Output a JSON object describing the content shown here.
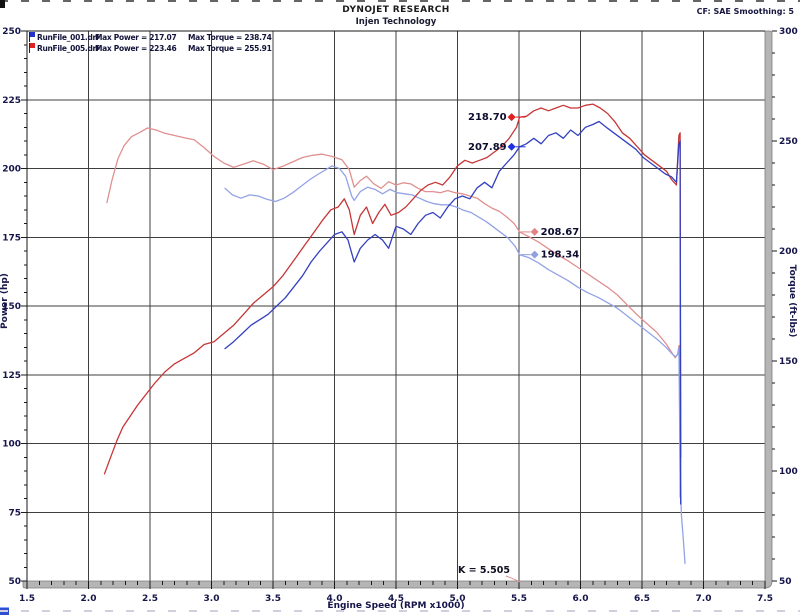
{
  "header": {
    "title": "DYNOJET RESEARCH",
    "subtitle": "Injen Technology",
    "correction": "CF: SAE  Smoothing: 5"
  },
  "legend": {
    "rows": [
      {
        "file": "RunFile_001.drf",
        "max_power": "Max Power = 217.07",
        "max_torque": "Max Torque = 238.74",
        "color": "#2233cc"
      },
      {
        "file": "RunFile_005.drf",
        "max_power": "Max Power = 223.46",
        "max_torque": "Max Torque = 255.91",
        "color": "#dd2222"
      }
    ]
  },
  "chart_data": {
    "type": "line",
    "title": "DYNOJET RESEARCH",
    "subtitle": "Injen Technology",
    "x_axis": {
      "label": "Engine Speed (RPM x1000)",
      "min": 1.5,
      "max": 7.5,
      "major_ticks": [
        1.5,
        2.0,
        2.5,
        3.0,
        3.5,
        4.0,
        4.5,
        5.0,
        5.5,
        6.0,
        6.5,
        7.0,
        7.5
      ],
      "minor_step": 0.1
    },
    "y_left": {
      "label": "Power (hp)",
      "min": 50,
      "max": 250,
      "major_ticks": [
        250,
        225,
        200,
        175,
        150,
        125,
        100,
        75,
        50
      ],
      "minor_step": 5
    },
    "y_right": {
      "label": "Torque (ft-lbs)",
      "min": 50,
      "max": 300,
      "major_ticks": [
        300,
        250,
        200,
        150,
        100,
        50
      ],
      "minor_step": 10
    },
    "grid": true,
    "legend_position": "top-left",
    "style": {
      "grid_color": "#3f3f3f",
      "frame_fill": "#b5b5b5",
      "frame_edge": "#7d7d7d",
      "tick_color": "#1a1a1a",
      "label_color": "#15154a"
    },
    "series": [
      {
        "id": "torque-run005",
        "name": "RunFile_005 Torque",
        "axis": "right",
        "color": "#e09090",
        "points": [
          [
            2.15,
            222
          ],
          [
            2.19,
            232
          ],
          [
            2.24,
            242
          ],
          [
            2.29,
            248
          ],
          [
            2.35,
            252
          ],
          [
            2.42,
            254
          ],
          [
            2.48,
            255.9
          ],
          [
            2.55,
            255
          ],
          [
            2.62,
            253.5
          ],
          [
            2.7,
            252.5
          ],
          [
            2.78,
            251.5
          ],
          [
            2.86,
            250.5
          ],
          [
            2.94,
            247
          ],
          [
            3.02,
            243
          ],
          [
            3.1,
            240
          ],
          [
            3.18,
            238
          ],
          [
            3.26,
            239.5
          ],
          [
            3.34,
            241
          ],
          [
            3.42,
            239.5
          ],
          [
            3.5,
            237
          ],
          [
            3.58,
            238.5
          ],
          [
            3.66,
            240.5
          ],
          [
            3.74,
            242.5
          ],
          [
            3.82,
            243.5
          ],
          [
            3.9,
            244
          ],
          [
            3.98,
            243
          ],
          [
            4.06,
            241.5
          ],
          [
            4.12,
            237
          ],
          [
            4.16,
            229
          ],
          [
            4.21,
            232
          ],
          [
            4.26,
            234
          ],
          [
            4.32,
            230.5
          ],
          [
            4.38,
            228.5
          ],
          [
            4.44,
            231.5
          ],
          [
            4.5,
            230
          ],
          [
            4.56,
            231
          ],
          [
            4.62,
            230.5
          ],
          [
            4.68,
            228.5
          ],
          [
            4.74,
            227
          ],
          [
            4.8,
            227
          ],
          [
            4.86,
            226.5
          ],
          [
            4.92,
            227.5
          ],
          [
            4.98,
            226.5
          ],
          [
            5.04,
            226
          ],
          [
            5.1,
            225
          ],
          [
            5.16,
            224
          ],
          [
            5.22,
            221.5
          ],
          [
            5.28,
            219.5
          ],
          [
            5.34,
            218
          ],
          [
            5.4,
            215.5
          ],
          [
            5.46,
            212.5
          ],
          [
            5.505,
            208.7
          ],
          [
            5.58,
            206.5
          ],
          [
            5.66,
            204
          ],
          [
            5.74,
            201
          ],
          [
            5.82,
            198
          ],
          [
            5.9,
            195.5
          ],
          [
            5.98,
            192.5
          ],
          [
            6.06,
            189.5
          ],
          [
            6.14,
            186.5
          ],
          [
            6.22,
            183.5
          ],
          [
            6.3,
            180
          ],
          [
            6.38,
            175.5
          ],
          [
            6.46,
            171
          ],
          [
            6.54,
            167
          ],
          [
            6.62,
            163
          ],
          [
            6.7,
            157.5
          ],
          [
            6.74,
            154
          ],
          [
            6.77,
            151.5
          ],
          [
            6.79,
            153
          ],
          [
            6.8,
            157
          ],
          [
            6.805,
            157
          ],
          [
            6.81,
            88
          ]
        ]
      },
      {
        "id": "torque-run001",
        "name": "RunFile_001 Torque",
        "axis": "right",
        "color": "#93a3e6",
        "points": [
          [
            3.11,
            228.5
          ],
          [
            3.17,
            225.5
          ],
          [
            3.24,
            224
          ],
          [
            3.31,
            225.5
          ],
          [
            3.38,
            225
          ],
          [
            3.45,
            223.5
          ],
          [
            3.52,
            222.5
          ],
          [
            3.59,
            224
          ],
          [
            3.66,
            226.5
          ],
          [
            3.73,
            229.5
          ],
          [
            3.8,
            232.5
          ],
          [
            3.87,
            235
          ],
          [
            3.93,
            237
          ],
          [
            3.98,
            238.7
          ],
          [
            4.04,
            237.5
          ],
          [
            4.09,
            234
          ],
          [
            4.14,
            225
          ],
          [
            4.16,
            223
          ],
          [
            4.21,
            227
          ],
          [
            4.27,
            229
          ],
          [
            4.33,
            228
          ],
          [
            4.39,
            226
          ],
          [
            4.45,
            228
          ],
          [
            4.51,
            226.5
          ],
          [
            4.57,
            226
          ],
          [
            4.63,
            225.5
          ],
          [
            4.69,
            224
          ],
          [
            4.75,
            222.5
          ],
          [
            4.81,
            221.5
          ],
          [
            4.87,
            221
          ],
          [
            4.93,
            221
          ],
          [
            4.99,
            220
          ],
          [
            5.05,
            218.5
          ],
          [
            5.11,
            217.5
          ],
          [
            5.17,
            215.5
          ],
          [
            5.23,
            213.5
          ],
          [
            5.29,
            211
          ],
          [
            5.35,
            208.5
          ],
          [
            5.41,
            206
          ],
          [
            5.47,
            202
          ],
          [
            5.505,
            198.3
          ],
          [
            5.58,
            197
          ],
          [
            5.66,
            194.5
          ],
          [
            5.74,
            191.5
          ],
          [
            5.82,
            189
          ],
          [
            5.9,
            186.5
          ],
          [
            5.98,
            183.5
          ],
          [
            6.06,
            181
          ],
          [
            6.14,
            179
          ],
          [
            6.22,
            176.5
          ],
          [
            6.3,
            174
          ],
          [
            6.38,
            170.5
          ],
          [
            6.46,
            167
          ],
          [
            6.54,
            163.5
          ],
          [
            6.62,
            160
          ],
          [
            6.7,
            156
          ],
          [
            6.74,
            153.5
          ],
          [
            6.77,
            152
          ],
          [
            6.79,
            153
          ],
          [
            6.8,
            156
          ],
          [
            6.81,
            100
          ],
          [
            6.82,
            80
          ],
          [
            6.84,
            66
          ],
          [
            6.85,
            58
          ]
        ]
      },
      {
        "id": "power-run005",
        "name": "RunFile_005 Power",
        "axis": "left",
        "color": "#c63636",
        "points": [
          [
            2.13,
            89
          ],
          [
            2.18,
            95
          ],
          [
            2.23,
            101
          ],
          [
            2.28,
            106
          ],
          [
            2.34,
            110
          ],
          [
            2.4,
            114
          ],
          [
            2.47,
            118
          ],
          [
            2.54,
            122
          ],
          [
            2.62,
            126
          ],
          [
            2.7,
            129
          ],
          [
            2.78,
            131
          ],
          [
            2.86,
            133
          ],
          [
            2.94,
            136
          ],
          [
            3.02,
            137
          ],
          [
            3.1,
            140
          ],
          [
            3.18,
            143
          ],
          [
            3.26,
            147
          ],
          [
            3.34,
            151
          ],
          [
            3.42,
            154
          ],
          [
            3.5,
            157
          ],
          [
            3.58,
            161
          ],
          [
            3.66,
            166
          ],
          [
            3.74,
            171
          ],
          [
            3.82,
            176
          ],
          [
            3.9,
            181
          ],
          [
            3.97,
            185
          ],
          [
            4.03,
            186
          ],
          [
            4.08,
            189
          ],
          [
            4.12,
            185
          ],
          [
            4.16,
            176
          ],
          [
            4.21,
            183
          ],
          [
            4.26,
            186
          ],
          [
            4.31,
            180
          ],
          [
            4.36,
            184
          ],
          [
            4.41,
            187
          ],
          [
            4.46,
            183
          ],
          [
            4.52,
            184
          ],
          [
            4.58,
            186
          ],
          [
            4.64,
            189
          ],
          [
            4.7,
            192
          ],
          [
            4.76,
            194
          ],
          [
            4.82,
            195
          ],
          [
            4.88,
            194
          ],
          [
            4.94,
            197
          ],
          [
            5.0,
            201
          ],
          [
            5.06,
            203
          ],
          [
            5.12,
            202
          ],
          [
            5.18,
            203
          ],
          [
            5.24,
            204
          ],
          [
            5.3,
            206
          ],
          [
            5.36,
            208
          ],
          [
            5.42,
            211
          ],
          [
            5.48,
            215
          ],
          [
            5.505,
            218.7
          ],
          [
            5.56,
            219
          ],
          [
            5.62,
            221
          ],
          [
            5.68,
            222
          ],
          [
            5.74,
            221
          ],
          [
            5.8,
            222
          ],
          [
            5.86,
            223
          ],
          [
            5.92,
            222
          ],
          [
            5.98,
            222
          ],
          [
            6.04,
            223
          ],
          [
            6.1,
            223.4
          ],
          [
            6.16,
            222
          ],
          [
            6.22,
            220
          ],
          [
            6.28,
            217
          ],
          [
            6.34,
            213
          ],
          [
            6.4,
            211
          ],
          [
            6.46,
            208
          ],
          [
            6.52,
            205
          ],
          [
            6.58,
            203
          ],
          [
            6.64,
            201
          ],
          [
            6.7,
            199
          ],
          [
            6.74,
            196
          ],
          [
            6.78,
            194
          ],
          [
            6.8,
            212
          ],
          [
            6.81,
            213
          ],
          [
            6.815,
            95
          ]
        ]
      },
      {
        "id": "power-run001",
        "name": "RunFile_001 Power",
        "axis": "left",
        "color": "#3340c0",
        "points": [
          [
            3.11,
            134.5
          ],
          [
            3.18,
            137
          ],
          [
            3.25,
            140
          ],
          [
            3.32,
            143
          ],
          [
            3.39,
            145
          ],
          [
            3.46,
            147
          ],
          [
            3.53,
            150
          ],
          [
            3.6,
            153
          ],
          [
            3.67,
            157
          ],
          [
            3.74,
            161
          ],
          [
            3.81,
            166
          ],
          [
            3.88,
            170
          ],
          [
            3.94,
            173
          ],
          [
            4.0,
            176
          ],
          [
            4.06,
            177
          ],
          [
            4.11,
            174
          ],
          [
            4.16,
            166
          ],
          [
            4.21,
            171
          ],
          [
            4.27,
            174
          ],
          [
            4.33,
            176
          ],
          [
            4.39,
            174
          ],
          [
            4.44,
            171
          ],
          [
            4.5,
            179
          ],
          [
            4.56,
            178
          ],
          [
            4.62,
            176
          ],
          [
            4.68,
            180
          ],
          [
            4.74,
            183
          ],
          [
            4.8,
            184
          ],
          [
            4.86,
            182
          ],
          [
            4.92,
            186
          ],
          [
            4.98,
            189
          ],
          [
            5.04,
            190
          ],
          [
            5.1,
            189
          ],
          [
            5.16,
            193
          ],
          [
            5.22,
            195
          ],
          [
            5.28,
            193
          ],
          [
            5.34,
            199
          ],
          [
            5.4,
            202
          ],
          [
            5.46,
            205
          ],
          [
            5.505,
            207.9
          ],
          [
            5.56,
            209
          ],
          [
            5.62,
            211
          ],
          [
            5.68,
            209
          ],
          [
            5.74,
            212
          ],
          [
            5.8,
            213
          ],
          [
            5.86,
            211
          ],
          [
            5.92,
            214
          ],
          [
            5.98,
            212
          ],
          [
            6.04,
            215
          ],
          [
            6.1,
            216
          ],
          [
            6.15,
            217.1
          ],
          [
            6.21,
            215
          ],
          [
            6.27,
            213
          ],
          [
            6.33,
            211
          ],
          [
            6.39,
            209
          ],
          [
            6.45,
            207
          ],
          [
            6.51,
            204
          ],
          [
            6.57,
            202
          ],
          [
            6.63,
            200
          ],
          [
            6.69,
            198
          ],
          [
            6.74,
            197
          ],
          [
            6.78,
            195
          ],
          [
            6.8,
            209
          ],
          [
            6.81,
            210
          ],
          [
            6.815,
            78
          ]
        ]
      }
    ],
    "callouts": [
      {
        "label": "218.70",
        "axis": "left",
        "rpm": 5.505,
        "value": 218.7,
        "color": "#e02020",
        "side": "left"
      },
      {
        "label": "207.89",
        "axis": "left",
        "rpm": 5.505,
        "value": 207.89,
        "color": "#2030dd",
        "side": "left"
      },
      {
        "label": "208.67",
        "axis": "right",
        "rpm": 5.505,
        "value": 208.67,
        "color": "#e08585",
        "side": "right"
      },
      {
        "label": "198.34",
        "axis": "right",
        "rpm": 5.505,
        "value": 198.34,
        "color": "#8fa0e0",
        "side": "right"
      }
    ],
    "cursor": {
      "label": "K = 5.505",
      "rpm": 5.505,
      "leader_color": "#e09090"
    }
  }
}
